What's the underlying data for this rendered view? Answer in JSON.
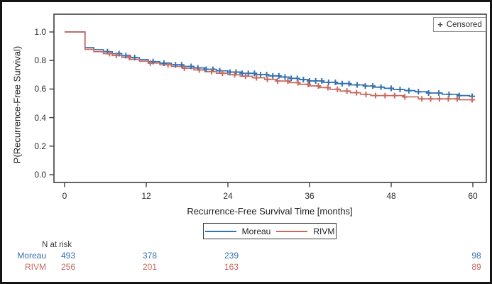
{
  "chart_data": {
    "type": "line",
    "subtype": "kaplan_meier_step_plot",
    "title": "",
    "xlabel": "Recurrence-Free Survival Time [months]",
    "ylabel": "P(Recurrence-Free Survival)",
    "xlim": [
      0,
      60
    ],
    "ylim": [
      0.0,
      1.0
    ],
    "xticks": [
      0,
      12,
      24,
      36,
      48,
      60
    ],
    "yticks": [
      0.0,
      0.2,
      0.4,
      0.6,
      0.8,
      1.0
    ],
    "grid": false,
    "legend_position": "below-plot",
    "censored_legend": {
      "marker": "+",
      "label": "Censored"
    },
    "series": [
      {
        "name": "Moreau",
        "color": "#3572B0",
        "steps": [
          [
            0,
            1.0
          ],
          [
            3,
            0.89
          ],
          [
            4.3,
            0.876
          ],
          [
            5.7,
            0.862
          ],
          [
            7,
            0.848
          ],
          [
            8.4,
            0.834
          ],
          [
            9.7,
            0.82
          ],
          [
            11,
            0.806
          ],
          [
            12.3,
            0.792
          ],
          [
            14,
            0.781
          ],
          [
            15.7,
            0.77
          ],
          [
            17.3,
            0.759
          ],
          [
            19,
            0.748
          ],
          [
            20.6,
            0.738
          ],
          [
            22.3,
            0.728
          ],
          [
            24,
            0.719
          ],
          [
            26,
            0.71
          ],
          [
            28,
            0.701
          ],
          [
            30,
            0.692
          ],
          [
            31.7,
            0.684
          ],
          [
            33,
            0.675
          ],
          [
            34.5,
            0.666
          ],
          [
            36,
            0.657
          ],
          [
            38,
            0.647
          ],
          [
            40,
            0.638
          ],
          [
            42,
            0.629
          ],
          [
            44,
            0.621
          ],
          [
            45.5,
            0.613
          ],
          [
            47,
            0.605
          ],
          [
            48.3,
            0.597
          ],
          [
            50,
            0.589
          ],
          [
            51.5,
            0.581
          ],
          [
            53.5,
            0.572
          ],
          [
            55.5,
            0.563
          ],
          [
            58,
            0.554
          ],
          [
            59.5,
            0.549
          ]
        ],
        "end_time": 60,
        "censor_times": [
          6.3,
          8,
          9,
          10.3,
          13,
          14.6,
          16.3,
          17.2,
          18.6,
          19.6,
          20.8,
          21.8,
          22.8,
          24.3,
          25.2,
          26.1,
          27,
          27.9,
          28.8,
          29.7,
          30.6,
          31.5,
          32.4,
          33.3,
          34.2,
          35.1,
          36,
          36.9,
          37.8,
          38.8,
          39.8,
          40.8,
          41.8,
          43,
          44.2,
          45.3,
          46.5,
          48,
          49.3,
          50.6,
          52,
          53.5,
          55,
          56.5,
          58,
          59.9
        ]
      },
      {
        "name": "RIVM",
        "color": "#C66A60",
        "steps": [
          [
            0,
            1.0
          ],
          [
            3,
            0.878
          ],
          [
            4.3,
            0.862
          ],
          [
            5.7,
            0.848
          ],
          [
            7,
            0.835
          ],
          [
            8.4,
            0.822
          ],
          [
            9.7,
            0.808
          ],
          [
            11,
            0.795
          ],
          [
            12.3,
            0.782
          ],
          [
            14,
            0.77
          ],
          [
            15.7,
            0.758
          ],
          [
            17.3,
            0.746
          ],
          [
            19,
            0.734
          ],
          [
            20.6,
            0.722
          ],
          [
            22.3,
            0.711
          ],
          [
            24,
            0.7
          ],
          [
            25.8,
            0.69
          ],
          [
            27.6,
            0.679
          ],
          [
            29.4,
            0.668
          ],
          [
            31.2,
            0.656
          ],
          [
            33,
            0.645
          ],
          [
            34.5,
            0.633
          ],
          [
            36,
            0.622
          ],
          [
            37.5,
            0.61
          ],
          [
            39,
            0.598
          ],
          [
            40.5,
            0.586
          ],
          [
            42,
            0.574
          ],
          [
            43.5,
            0.563
          ],
          [
            45,
            0.554
          ],
          [
            50,
            0.545
          ],
          [
            52,
            0.531
          ],
          [
            58,
            0.525
          ]
        ],
        "end_time": 60,
        "censor_times": [
          6.6,
          7.6,
          9.5,
          12.6,
          15.2,
          17.6,
          19.8,
          21.6,
          23.2,
          25,
          26.6,
          28.2,
          29.8,
          31.3,
          32.8,
          34.3,
          35.8,
          37.3,
          38.7,
          40.1,
          41.5,
          42.9,
          44.3,
          45.7,
          47.1,
          48.5,
          50,
          52.5,
          53.8,
          55.1,
          56.4,
          57.7,
          59.9
        ]
      }
    ],
    "n_at_risk": {
      "header": "N at risk",
      "times": [
        0,
        12,
        24,
        60
      ],
      "rows": [
        {
          "name": "Moreau",
          "values": [
            "493",
            "378",
            "239",
            "98"
          ]
        },
        {
          "name": "RIVM",
          "values": [
            "256",
            "201",
            "163",
            "89"
          ]
        }
      ]
    }
  }
}
